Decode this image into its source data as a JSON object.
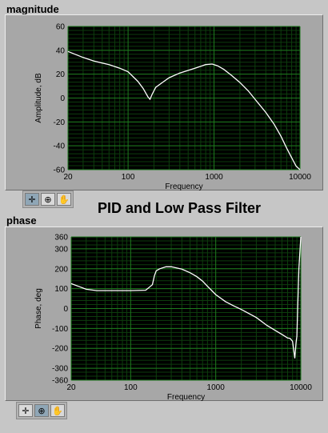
{
  "title": "PID and Low Pass Filter",
  "toolbar": {
    "tools": [
      "cursor-cross-icon",
      "zoom-icon",
      "pan-hand-icon"
    ]
  },
  "colors": {
    "plot_bg": "#000000",
    "grid_major": "#1e7a1e",
    "grid_minor": "#0d3d0d",
    "trace": "#ffffff",
    "frame": "#a7a7a7"
  },
  "chart_data": [
    {
      "type": "line",
      "label": "magnitude",
      "xlabel": "Frequency",
      "ylabel": "Amplitude, dB",
      "xscale": "log",
      "xlim": [
        20,
        10000
      ],
      "ylim": [
        -60,
        60
      ],
      "xticks": [
        "20",
        "100",
        "1000",
        "10000"
      ],
      "xtick_values": [
        20,
        100,
        1000,
        10000
      ],
      "yticks": [
        "60",
        "40",
        "20",
        "0",
        "-20",
        "-40",
        "-60"
      ],
      "ytick_values": [
        60,
        40,
        20,
        0,
        -20,
        -40,
        -60
      ],
      "grid": true,
      "series": [
        {
          "x": [
            20,
            30,
            40,
            60,
            80,
            100,
            130,
            150,
            170,
            180,
            190,
            210,
            250,
            300,
            400,
            600,
            800,
            950,
            1100,
            1300,
            1600,
            2000,
            2500,
            3000,
            4000,
            5000,
            6000,
            7000,
            8000,
            9000,
            10000
          ],
          "y": [
            39,
            34,
            31,
            28,
            25,
            22,
            14,
            8,
            1,
            -1,
            3,
            9,
            13,
            17,
            21,
            25,
            28,
            28.5,
            27,
            24,
            19,
            13,
            6,
            -1,
            -12,
            -22,
            -32,
            -42,
            -50,
            -57,
            -60
          ]
        }
      ]
    },
    {
      "type": "line",
      "label": "phase",
      "xlabel": "Frequency",
      "ylabel": "Phase, deg",
      "xscale": "log",
      "xlim": [
        20,
        10000
      ],
      "ylim": [
        -360,
        360
      ],
      "xticks": [
        "20",
        "100",
        "1000",
        "10000"
      ],
      "xtick_values": [
        20,
        100,
        1000,
        10000
      ],
      "yticks": [
        "360",
        "300",
        "200",
        "100",
        "0",
        "-100",
        "-200",
        "-300",
        "-360"
      ],
      "ytick_values": [
        360,
        300,
        200,
        100,
        0,
        -100,
        -200,
        -300,
        -360
      ],
      "grid": true,
      "series": [
        {
          "x": [
            20,
            25,
            30,
            40,
            60,
            80,
            100,
            150,
            180,
            190,
            200,
            220,
            260,
            300,
            400,
            500,
            600,
            700,
            800,
            1000,
            1300,
            1600,
            2000,
            3000,
            4000,
            5000,
            6000,
            7000,
            7500,
            8000,
            8500,
            8800,
            9000,
            9200,
            9500,
            10000
          ],
          "y": [
            125,
            110,
            97,
            90,
            90,
            90,
            90,
            92,
            120,
            165,
            190,
            200,
            210,
            210,
            198,
            180,
            160,
            138,
            112,
            70,
            35,
            15,
            -5,
            -45,
            -85,
            -110,
            -130,
            -148,
            -150,
            -165,
            -250,
            -170,
            -140,
            0,
            200,
            360
          ]
        }
      ]
    }
  ]
}
